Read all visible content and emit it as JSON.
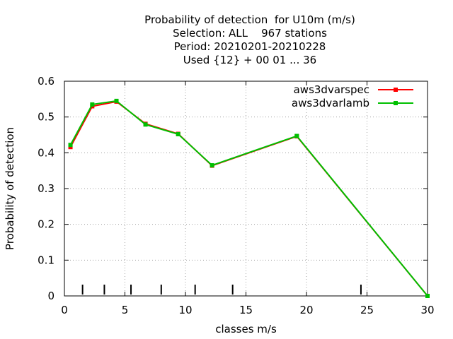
{
  "chart_data": {
    "type": "line",
    "title_lines": [
      "Probability of detection  for U10m (m/s)",
      "Selection: ALL    967 stations",
      "Period: 20210201-20210228",
      "Used {12} + 00 01 ... 36"
    ],
    "xlabel": "classes m/s",
    "ylabel": "Probability of detection",
    "xlim": [
      0,
      30
    ],
    "ylim": [
      0,
      0.6
    ],
    "xticks": [
      0,
      5,
      10,
      15,
      20,
      25,
      30
    ],
    "yticks": [
      0,
      0.1,
      0.2,
      0.3,
      0.4,
      0.5,
      0.6
    ],
    "grid": true,
    "legend_position": "top-right",
    "class_markers": [
      1.5,
      3.3,
      5.5,
      8.0,
      10.8,
      13.9,
      24.5
    ],
    "series": [
      {
        "name": "aws3dvarspec",
        "color": "#ff0000",
        "x": [
          0.5,
          2.3,
          4.3,
          6.7,
          9.4,
          12.2,
          19.2,
          30.0
        ],
        "y": [
          0.416,
          0.53,
          0.543,
          0.481,
          0.453,
          0.364,
          0.446,
          0.0
        ]
      },
      {
        "name": "aws3dvarlamb",
        "color": "#00c000",
        "x": [
          0.5,
          2.3,
          4.3,
          6.7,
          9.4,
          12.2,
          19.2,
          30.0
        ],
        "y": [
          0.422,
          0.535,
          0.545,
          0.479,
          0.452,
          0.365,
          0.447,
          0.0
        ]
      }
    ]
  }
}
